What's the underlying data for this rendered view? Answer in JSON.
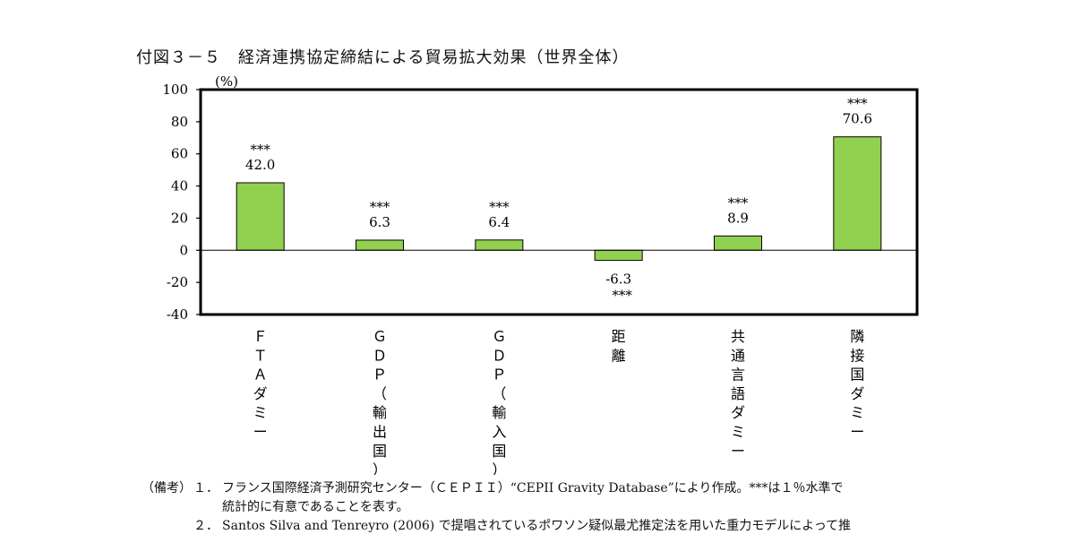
{
  "title": "付図３－５　経済連携協定締結による貿易拡大効果（世界全体）",
  "chart_data": {
    "type": "bar",
    "unit_label": "(%)",
    "categories": [
      "ＦＴＡダミー",
      "ＧＤＰ（輸出国）",
      "ＧＤＰ（輸入国）",
      "距離",
      "共通言語ダミー",
      "隣接国ダミー"
    ],
    "values": [
      42.0,
      6.3,
      6.4,
      -6.3,
      8.9,
      70.6
    ],
    "value_labels": [
      "42.0",
      "6.3",
      "6.4",
      "-6.3",
      "8.9",
      "70.6"
    ],
    "significance": [
      "***",
      "***",
      "***",
      "***",
      "***",
      "***"
    ],
    "yticks": [
      100,
      80,
      60,
      40,
      20,
      0,
      -20,
      -40
    ],
    "ytick_labels": [
      "100",
      "80",
      "60",
      "40",
      "20",
      "0",
      "-20",
      "-40"
    ],
    "ylim": [
      -40,
      100
    ],
    "grid": false,
    "bar_color": "#92d050"
  },
  "notes": {
    "heading": "（備考）",
    "items": [
      {
        "num": "１．",
        "lines": [
          "フランス国際経済予測研究センター（ＣＥＰＩＩ）“CEPII Gravity Database”により作成。***は１％水準で",
          "統計的に有意であることを表す。"
        ]
      },
      {
        "num": "２．",
        "lines": [
          "Santos Silva and Tenreyro (2006) で提唱されているポワソン疑似最尤推定法を用いた重力モデルによって推"
        ]
      }
    ]
  }
}
